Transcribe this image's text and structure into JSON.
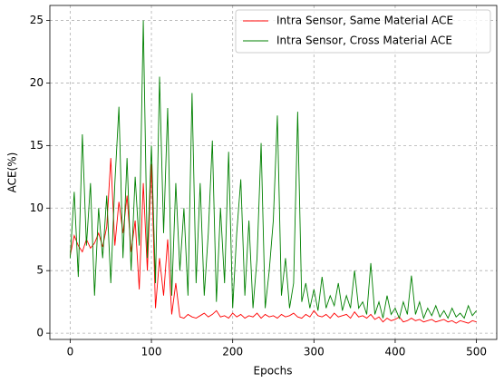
{
  "chart_data": {
    "type": "line",
    "x_label": "Epochs",
    "y_label": "ACE(%)",
    "x": [
      0,
      5,
      10,
      15,
      20,
      25,
      30,
      35,
      40,
      45,
      50,
      55,
      60,
      65,
      70,
      75,
      80,
      85,
      90,
      95,
      100,
      105,
      110,
      115,
      120,
      125,
      130,
      135,
      140,
      145,
      150,
      155,
      160,
      165,
      170,
      175,
      180,
      185,
      190,
      195,
      200,
      205,
      210,
      215,
      220,
      225,
      230,
      235,
      240,
      245,
      250,
      255,
      260,
      265,
      270,
      275,
      280,
      285,
      290,
      295,
      300,
      305,
      310,
      315,
      320,
      325,
      330,
      335,
      340,
      345,
      350,
      355,
      360,
      365,
      370,
      375,
      380,
      385,
      390,
      395,
      400,
      405,
      410,
      415,
      420,
      425,
      430,
      435,
      440,
      445,
      450,
      455,
      460,
      465,
      470,
      475,
      480,
      485,
      490,
      495,
      500
    ],
    "series": [
      {
        "name": "Intra Sensor, Same Material ACE",
        "color": "#ff0000",
        "values": [
          6.2,
          7.8,
          7.0,
          6.5,
          7.5,
          6.8,
          7.2,
          8.0,
          6.9,
          8.5,
          14.0,
          7.0,
          10.5,
          8.0,
          11.0,
          6.5,
          9.0,
          3.5,
          12.0,
          5.0,
          13.5,
          2.0,
          6.0,
          3.0,
          7.5,
          1.5,
          4.0,
          1.3,
          1.2,
          1.5,
          1.3,
          1.2,
          1.4,
          1.6,
          1.3,
          1.5,
          1.8,
          1.3,
          1.4,
          1.2,
          1.6,
          1.3,
          1.5,
          1.2,
          1.4,
          1.3,
          1.6,
          1.2,
          1.5,
          1.3,
          1.4,
          1.2,
          1.5,
          1.3,
          1.4,
          1.6,
          1.3,
          1.2,
          1.5,
          1.3,
          1.8,
          1.4,
          1.3,
          1.5,
          1.2,
          1.6,
          1.3,
          1.4,
          1.5,
          1.2,
          1.7,
          1.3,
          1.4,
          1.2,
          1.5,
          1.1,
          1.3,
          0.9,
          1.2,
          1.0,
          1.1,
          1.3,
          0.9,
          1.0,
          1.2,
          1.0,
          1.1,
          0.9,
          1.0,
          1.1,
          0.9,
          1.0,
          1.1,
          0.9,
          1.0,
          0.8,
          1.0,
          0.9,
          0.8,
          1.0,
          0.9
        ]
      },
      {
        "name": "Intra Sensor, Cross Material ACE",
        "color": "#008000",
        "values": [
          6.0,
          11.3,
          4.5,
          15.9,
          7.0,
          12.0,
          3.0,
          10.0,
          6.0,
          11.0,
          4.0,
          12.0,
          18.1,
          6.0,
          14.0,
          5.0,
          12.5,
          7.0,
          25.0,
          6.0,
          15.0,
          4.0,
          20.5,
          8.0,
          18.0,
          3.0,
          12.0,
          5.0,
          10.0,
          3.0,
          19.2,
          4.0,
          12.0,
          3.0,
          8.0,
          15.4,
          2.5,
          10.0,
          4.0,
          14.5,
          2.0,
          8.0,
          12.3,
          3.0,
          9.0,
          2.0,
          6.0,
          15.2,
          2.0,
          5.0,
          9.0,
          17.4,
          3.0,
          6.0,
          2.0,
          4.0,
          17.7,
          2.5,
          4.0,
          2.0,
          3.5,
          1.8,
          4.5,
          2.0,
          3.0,
          2.2,
          4.0,
          1.8,
          3.0,
          2.0,
          5.0,
          2.0,
          2.5,
          1.5,
          5.6,
          1.5,
          2.5,
          1.2,
          3.0,
          1.5,
          2.0,
          1.2,
          2.5,
          1.5,
          4.6,
          1.5,
          2.5,
          1.2,
          2.0,
          1.4,
          2.2,
          1.3,
          1.8,
          1.2,
          2.0,
          1.3,
          1.6,
          1.2,
          2.2,
          1.4,
          1.8
        ]
      }
    ],
    "xlim": [
      -25,
      525
    ],
    "ylim": [
      -0.5,
      26.2
    ],
    "xticks": [
      0,
      100,
      200,
      300,
      400,
      500
    ],
    "yticks": [
      0,
      5,
      10,
      15,
      20,
      25
    ],
    "grid": true,
    "legend": "upper right"
  }
}
